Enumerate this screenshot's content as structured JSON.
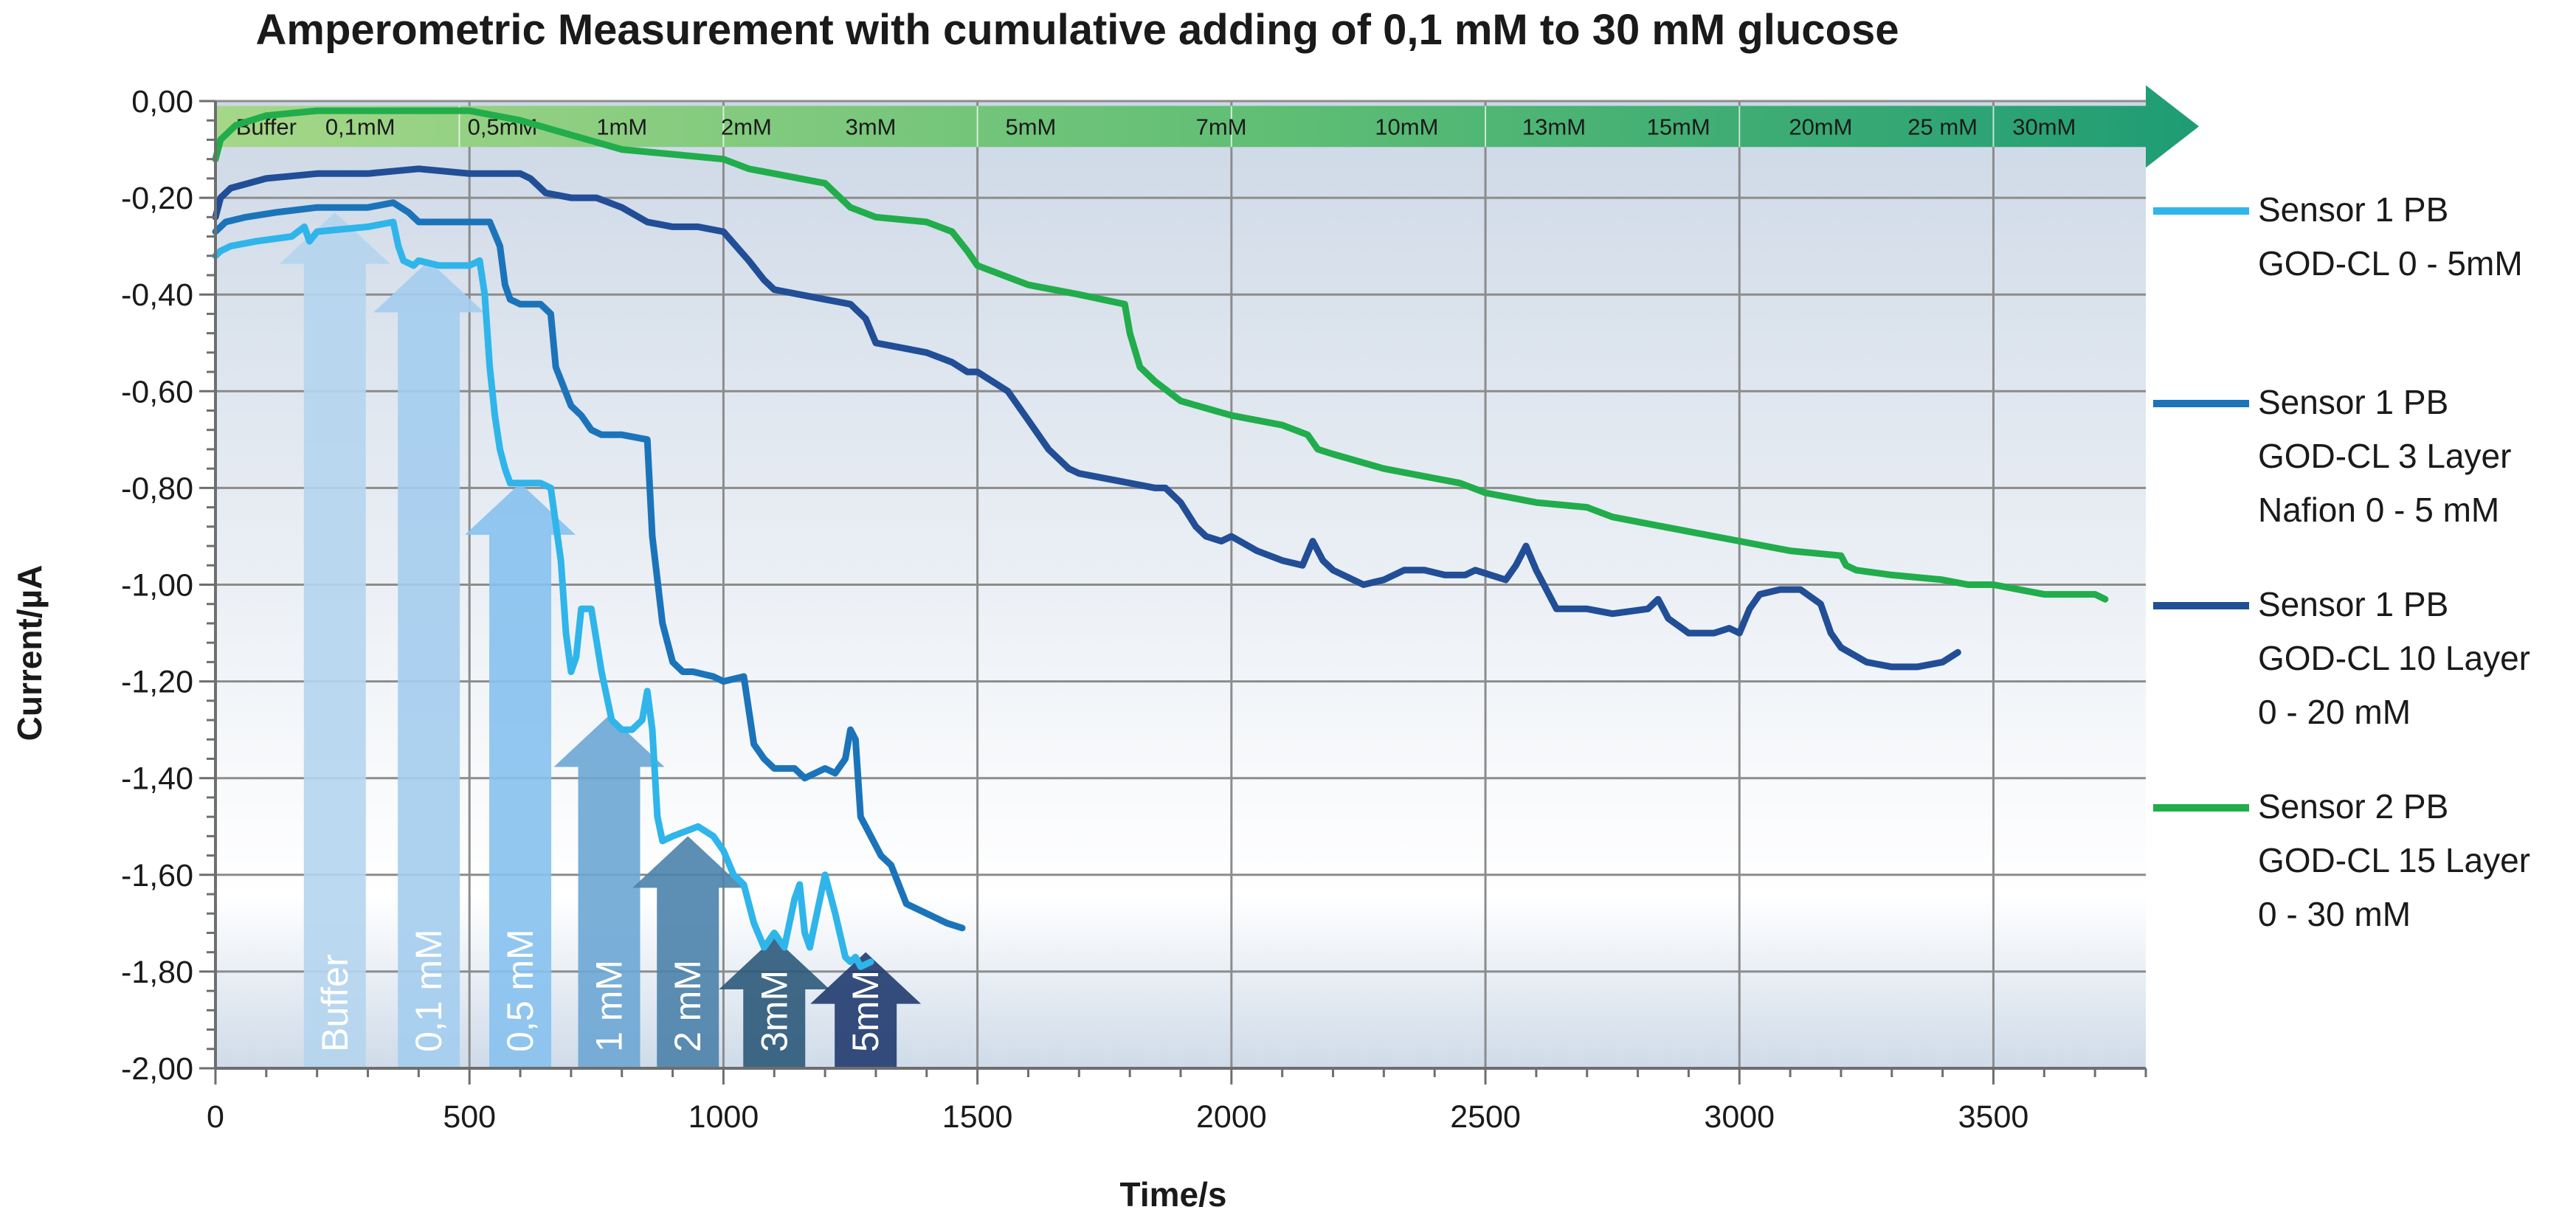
{
  "chart_data": {
    "type": "line",
    "title": "Amperometric Measurement with cumulative adding of 0,1 mM to 30 mM glucose",
    "xlabel": "Time/s",
    "ylabel": "Current/µA",
    "xlim": [
      0,
      3800
    ],
    "ylim": [
      -2.0,
      0.0
    ],
    "x_ticks": [
      "0",
      "500",
      "1000",
      "1500",
      "2000",
      "2500",
      "3000",
      "3500"
    ],
    "y_ticks": [
      "0,00",
      "-0,20",
      "-0,40",
      "-0,60",
      "-0,80",
      "-1,00",
      "-1,20",
      "-1,40",
      "-1,60",
      "-1,80",
      "-2,00"
    ],
    "grid": true,
    "legend_position": "right",
    "concentration_band": [
      {
        "label": "Buffer",
        "x": 100
      },
      {
        "label": "0,1mM",
        "x": 285
      },
      {
        "label": "0,5mM",
        "x": 565
      },
      {
        "label": "1mM",
        "x": 800
      },
      {
        "label": "2mM",
        "x": 1045
      },
      {
        "label": "3mM",
        "x": 1290
      },
      {
        "label": "5mM",
        "x": 1605
      },
      {
        "label": "7mM",
        "x": 1980
      },
      {
        "label": "10mM",
        "x": 2345
      },
      {
        "label": "13mM",
        "x": 2635
      },
      {
        "label": "15mM",
        "x": 2880
      },
      {
        "label": "20mM",
        "x": 3160
      },
      {
        "label": "25 mM",
        "x": 3400
      },
      {
        "label": "30mM",
        "x": 3600
      }
    ],
    "band_dividers": [
      480,
      1000,
      1500,
      2000,
      2500,
      3000,
      3500
    ],
    "addition_arrows": [
      {
        "label": "Buffer",
        "x": 235,
        "y_tip": -0.23,
        "color": "#b4d5ee"
      },
      {
        "label": "0,1 mM",
        "x": 420,
        "y_tip": -0.33,
        "color": "#a4cdee"
      },
      {
        "label": "0,5 mM",
        "x": 600,
        "y_tip": -0.79,
        "color": "#86c1ee"
      },
      {
        "label": "1 mM",
        "x": 775,
        "y_tip": -1.27,
        "color": "#6ba6d4"
      },
      {
        "label": "2 mM",
        "x": 930,
        "y_tip": -1.52,
        "color": "#4b82ab"
      },
      {
        "label": "3mM",
        "x": 1100,
        "y_tip": -1.73,
        "color": "#2c597a"
      },
      {
        "label": "5mM",
        "x": 1280,
        "y_tip": -1.76,
        "color": "#203b6f"
      }
    ],
    "series": [
      {
        "name": "Sensor 1 PB GOD-CL 0 - 5mM",
        "legend_lines": [
          "Sensor 1 PB",
          "GOD-CL 0 - 5mM"
        ],
        "color": "#2fb5ea",
        "x": [
          0,
          10,
          30,
          80,
          150,
          175,
          185,
          200,
          300,
          350,
          360,
          370,
          390,
          400,
          440,
          480,
          500,
          520,
          530,
          540,
          545,
          550,
          560,
          570,
          580,
          600,
          640,
          660,
          680,
          690,
          700,
          710,
          720,
          740,
          760,
          780,
          800,
          820,
          840,
          850,
          860,
          870,
          880,
          900,
          950,
          980,
          1000,
          1020,
          1040,
          1060,
          1080,
          1100,
          1120,
          1140,
          1150,
          1160,
          1170,
          1180,
          1200,
          1220,
          1240,
          1250,
          1260,
          1270,
          1290
        ],
        "y": [
          -0.32,
          -0.31,
          -0.3,
          -0.29,
          -0.28,
          -0.26,
          -0.29,
          -0.27,
          -0.26,
          -0.25,
          -0.3,
          -0.33,
          -0.34,
          -0.33,
          -0.34,
          -0.34,
          -0.34,
          -0.33,
          -0.4,
          -0.55,
          -0.6,
          -0.65,
          -0.72,
          -0.76,
          -0.79,
          -0.79,
          -0.79,
          -0.8,
          -0.95,
          -1.1,
          -1.18,
          -1.15,
          -1.05,
          -1.05,
          -1.18,
          -1.28,
          -1.3,
          -1.3,
          -1.28,
          -1.22,
          -1.3,
          -1.48,
          -1.53,
          -1.52,
          -1.5,
          -1.52,
          -1.55,
          -1.6,
          -1.62,
          -1.7,
          -1.75,
          -1.72,
          -1.75,
          -1.65,
          -1.62,
          -1.72,
          -1.75,
          -1.7,
          -1.6,
          -1.68,
          -1.77,
          -1.78,
          -1.77,
          -1.79,
          -1.78
        ]
      },
      {
        "name": "Sensor 1 PB GOD-CL 3 Layer Nafion 0 - 5 mM",
        "legend_lines": [
          "Sensor 1 PB",
          "GOD-CL 3 Layer",
          "Nafion 0 - 5 mM"
        ],
        "color": "#1b74ba",
        "x": [
          0,
          20,
          60,
          120,
          200,
          300,
          350,
          380,
          400,
          480,
          500,
          540,
          560,
          570,
          580,
          600,
          640,
          660,
          670,
          700,
          720,
          740,
          760,
          800,
          850,
          860,
          880,
          890,
          900,
          920,
          940,
          980,
          1000,
          1040,
          1060,
          1080,
          1100,
          1140,
          1160,
          1200,
          1220,
          1240,
          1250,
          1260,
          1270,
          1290,
          1310,
          1330,
          1360,
          1400,
          1440,
          1470
        ],
        "y": [
          -0.27,
          -0.25,
          -0.24,
          -0.23,
          -0.22,
          -0.22,
          -0.21,
          -0.23,
          -0.25,
          -0.25,
          -0.25,
          -0.25,
          -0.3,
          -0.38,
          -0.41,
          -0.42,
          -0.42,
          -0.44,
          -0.55,
          -0.63,
          -0.65,
          -0.68,
          -0.69,
          -0.69,
          -0.7,
          -0.9,
          -1.08,
          -1.12,
          -1.16,
          -1.18,
          -1.18,
          -1.19,
          -1.2,
          -1.19,
          -1.33,
          -1.36,
          -1.38,
          -1.38,
          -1.4,
          -1.38,
          -1.39,
          -1.36,
          -1.3,
          -1.32,
          -1.48,
          -1.52,
          -1.56,
          -1.58,
          -1.66,
          -1.68,
          -1.7,
          -1.71
        ]
      },
      {
        "name": "Sensor 1 PB GOD-CL 10 Layer 0 - 20 mM",
        "legend_lines": [
          "Sensor 1 PB",
          "GOD-CL 10 Layer",
          "0 - 20 mM"
        ],
        "color": "#214e96",
        "x": [
          0,
          10,
          30,
          100,
          200,
          300,
          400,
          500,
          600,
          620,
          650,
          700,
          750,
          800,
          850,
          900,
          950,
          1000,
          1050,
          1080,
          1100,
          1150,
          1200,
          1250,
          1280,
          1300,
          1350,
          1400,
          1450,
          1480,
          1500,
          1560,
          1600,
          1640,
          1680,
          1700,
          1800,
          1850,
          1870,
          1900,
          1930,
          1950,
          1980,
          2000,
          2050,
          2100,
          2140,
          2160,
          2180,
          2200,
          2260,
          2300,
          2340,
          2380,
          2420,
          2460,
          2480,
          2540,
          2560,
          2580,
          2600,
          2640,
          2700,
          2750,
          2820,
          2840,
          2860,
          2900,
          2950,
          2980,
          3000,
          3020,
          3040,
          3080,
          3120,
          3160,
          3180,
          3200,
          3250,
          3300,
          3350,
          3400,
          3430
        ],
        "y": [
          -0.24,
          -0.2,
          -0.18,
          -0.16,
          -0.15,
          -0.15,
          -0.14,
          -0.15,
          -0.15,
          -0.16,
          -0.19,
          -0.2,
          -0.2,
          -0.22,
          -0.25,
          -0.26,
          -0.26,
          -0.27,
          -0.33,
          -0.37,
          -0.39,
          -0.4,
          -0.41,
          -0.42,
          -0.45,
          -0.5,
          -0.51,
          -0.52,
          -0.54,
          -0.56,
          -0.56,
          -0.6,
          -0.66,
          -0.72,
          -0.76,
          -0.77,
          -0.79,
          -0.8,
          -0.8,
          -0.83,
          -0.88,
          -0.9,
          -0.91,
          -0.9,
          -0.93,
          -0.95,
          -0.96,
          -0.91,
          -0.95,
          -0.97,
          -1.0,
          -0.99,
          -0.97,
          -0.97,
          -0.98,
          -0.98,
          -0.97,
          -0.99,
          -0.96,
          -0.92,
          -0.97,
          -1.05,
          -1.05,
          -1.06,
          -1.05,
          -1.03,
          -1.07,
          -1.1,
          -1.1,
          -1.09,
          -1.1,
          -1.05,
          -1.02,
          -1.01,
          -1.01,
          -1.04,
          -1.1,
          -1.13,
          -1.16,
          -1.17,
          -1.17,
          -1.16,
          -1.14
        ]
      },
      {
        "name": "Sensor 2 PB GOD-CL 15 Layer 0 - 30 mM",
        "legend_lines": [
          "Sensor 2 PB",
          "GOD-CL 15 Layer",
          "0 - 30 mM"
        ],
        "color": "#21ad4b",
        "x": [
          0,
          10,
          40,
          100,
          200,
          300,
          400,
          500,
          600,
          700,
          800,
          900,
          1000,
          1050,
          1100,
          1150,
          1200,
          1250,
          1300,
          1400,
          1450,
          1480,
          1500,
          1600,
          1700,
          1790,
          1800,
          1820,
          1850,
          1900,
          2000,
          2100,
          2150,
          2170,
          2200,
          2300,
          2400,
          2450,
          2500,
          2600,
          2700,
          2750,
          2800,
          2900,
          3000,
          3100,
          3200,
          3210,
          3230,
          3300,
          3400,
          3450,
          3500,
          3550,
          3600,
          3650,
          3700,
          3720
        ],
        "y": [
          -0.12,
          -0.08,
          -0.05,
          -0.03,
          -0.02,
          -0.02,
          -0.02,
          -0.02,
          -0.04,
          -0.07,
          -0.1,
          -0.11,
          -0.12,
          -0.14,
          -0.15,
          -0.16,
          -0.17,
          -0.22,
          -0.24,
          -0.25,
          -0.27,
          -0.31,
          -0.34,
          -0.38,
          -0.4,
          -0.42,
          -0.48,
          -0.55,
          -0.58,
          -0.62,
          -0.65,
          -0.67,
          -0.69,
          -0.72,
          -0.73,
          -0.76,
          -0.78,
          -0.79,
          -0.81,
          -0.83,
          -0.84,
          -0.86,
          -0.87,
          -0.89,
          -0.91,
          -0.93,
          -0.94,
          -0.96,
          -0.97,
          -0.98,
          -0.99,
          -1.0,
          -1.0,
          -1.01,
          -1.02,
          -1.02,
          -1.02,
          -1.03
        ]
      }
    ]
  }
}
